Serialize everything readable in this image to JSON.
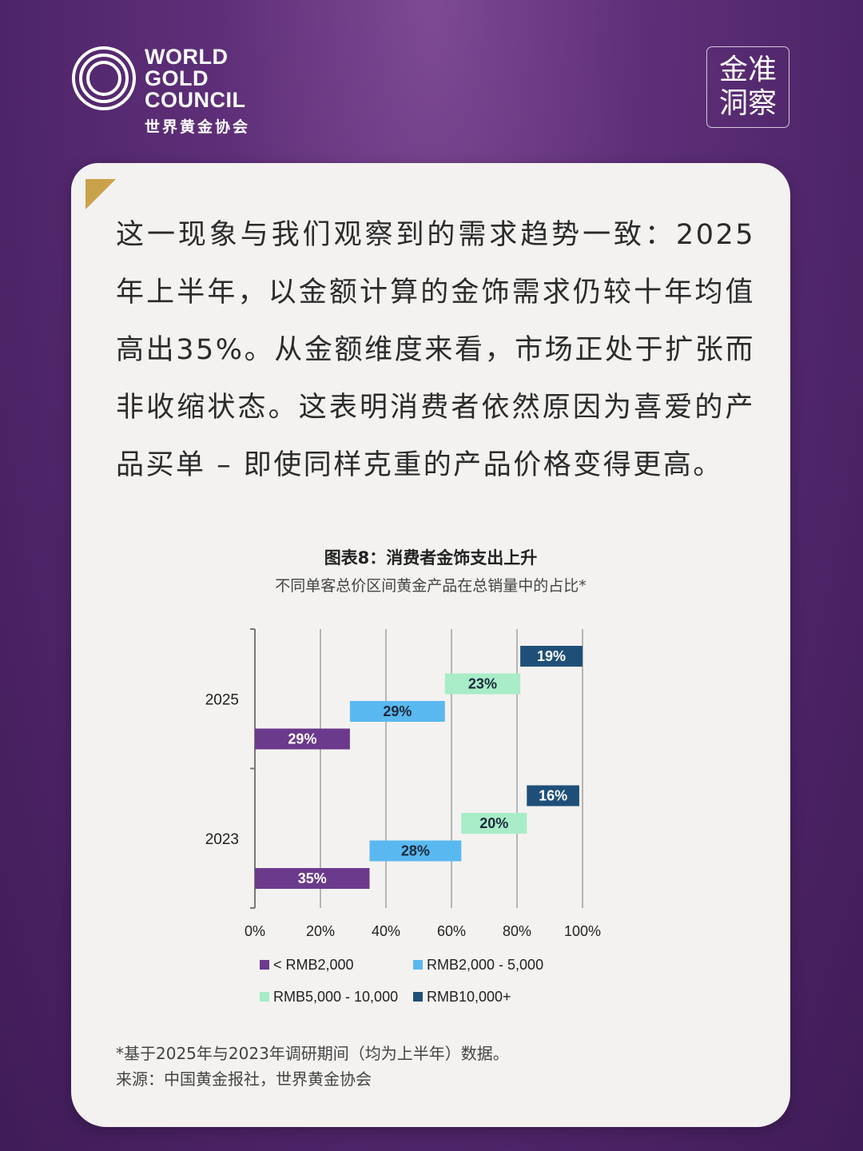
{
  "brand": {
    "line1": "WORLD",
    "line2": "GOLD",
    "line3": "COUNCIL",
    "chinese": "世界黄金协会"
  },
  "badge": {
    "line1": "金准",
    "line2": "洞察"
  },
  "body_text": "这一现象与我们观察到的需求趋势一致：2025年上半年，以金额计算的金饰需求仍较十年均值高出35%。从金额维度来看，市场正处于扩张而非收缩状态。这表明消费者依然原因为喜爱的产品买单 – 即使同样克重的产品价格变得更高。",
  "chart_data": {
    "type": "bar",
    "orientation": "horizontal",
    "stacked": true,
    "title": "图表8：消费者金饰支出上升",
    "subtitle": "不同单客总价区间黄金产品在总销量中的占比*",
    "categories": [
      "2025",
      "2023"
    ],
    "series": [
      {
        "name": "< RMB2,000",
        "values": [
          29,
          35
        ],
        "labels": [
          "29%",
          "35%"
        ],
        "color": "#6b3a8c"
      },
      {
        "name": "RMB2,000 - 5,000",
        "values": [
          29,
          28
        ],
        "labels": [
          "29%",
          "28%"
        ],
        "color": "#5ab8f0"
      },
      {
        "name": "RMB5,000 - 10,000",
        "values": [
          23,
          20
        ],
        "labels": [
          "23%",
          "20%"
        ],
        "color": "#a8ecc8"
      },
      {
        "name": "RMB10,000+",
        "values": [
          19,
          16
        ],
        "labels": [
          "19%",
          "16%"
        ],
        "color": "#1f4f78"
      }
    ],
    "xlim": [
      0,
      100
    ],
    "xticks": [
      "0%",
      "20%",
      "40%",
      "60%",
      "80%",
      "100%"
    ],
    "grid": true,
    "legend_position": "bottom"
  },
  "footnote": "*基于2025年与2023年调研期间（均为上半年）数据。",
  "source": "来源：中国黄金报社，世界黄金协会",
  "colors": {
    "background": "#5e2f78",
    "card": "#f3f2f0",
    "accent": "#c9a24a"
  }
}
